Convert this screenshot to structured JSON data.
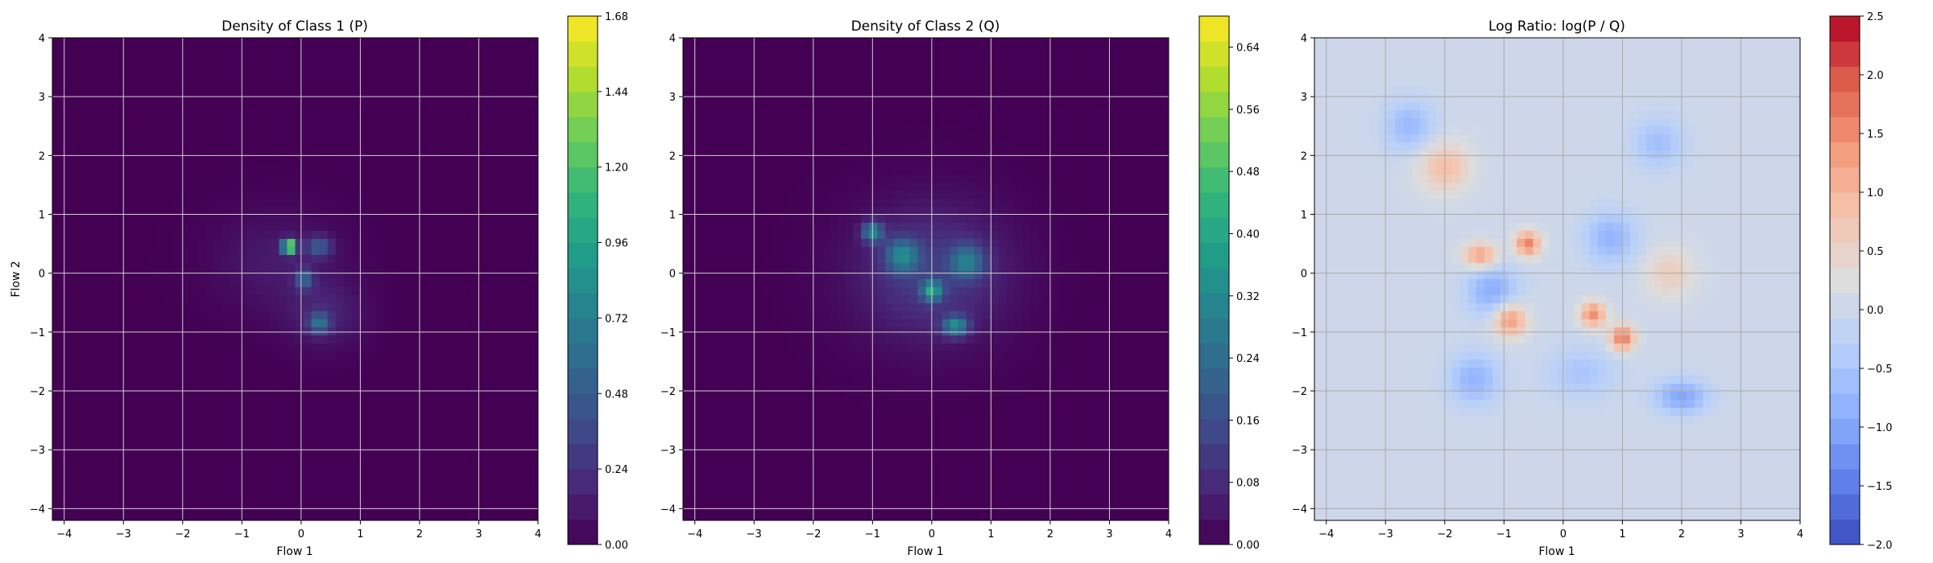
{
  "chart_data": [
    {
      "type": "heatmap",
      "title": "Density of Class 1 (P)",
      "xlabel": "Flow 1",
      "ylabel": "Flow 2",
      "xlim": [
        -4.2,
        4.0
      ],
      "ylim": [
        -4.2,
        4.0
      ],
      "xticks": [
        "−4",
        "−3",
        "−2",
        "−1",
        "0",
        "1",
        "2",
        "3",
        "4"
      ],
      "yticks": [
        "−4",
        "−3",
        "−2",
        "−1",
        "0",
        "1",
        "2",
        "3",
        "4"
      ],
      "grid": true,
      "colormap": "viridis",
      "colorbar": {
        "range": [
          0.0,
          1.68
        ],
        "ticks": [
          "0.00",
          "0.24",
          "0.48",
          "0.72",
          "0.96",
          "1.20",
          "1.44",
          "1.68"
        ]
      },
      "background_value": 0.0,
      "blobs": [
        {
          "x": -0.4,
          "y": 0.2,
          "sx": 0.75,
          "sy": 0.6,
          "value": 0.12
        },
        {
          "x": 0.4,
          "y": -0.7,
          "sx": 0.45,
          "sy": 0.4,
          "value": 0.16
        },
        {
          "x": -0.2,
          "y": 0.45,
          "sx": 0.08,
          "sy": 0.08,
          "value": 1.68
        },
        {
          "x": 0.3,
          "y": -0.85,
          "sx": 0.12,
          "sy": 0.12,
          "value": 0.55
        },
        {
          "x": 0.05,
          "y": -0.1,
          "sx": 0.1,
          "sy": 0.12,
          "value": 0.5
        },
        {
          "x": 0.3,
          "y": 0.45,
          "sx": 0.15,
          "sy": 0.12,
          "value": 0.45
        }
      ]
    },
    {
      "type": "heatmap",
      "title": "Density of Class 2 (Q)",
      "xlabel": "Flow 1",
      "ylabel": "",
      "xlim": [
        -4.2,
        4.0
      ],
      "ylim": [
        -4.2,
        4.0
      ],
      "xticks": [
        "−4",
        "−3",
        "−2",
        "−1",
        "0",
        "1",
        "2",
        "3",
        "4"
      ],
      "yticks": [
        "−4",
        "−3",
        "−2",
        "−1",
        "0",
        "1",
        "2",
        "3",
        "4"
      ],
      "grid": true,
      "colormap": "viridis",
      "colorbar": {
        "range": [
          0.0,
          0.68
        ],
        "ticks": [
          "0.00",
          "0.08",
          "0.16",
          "0.24",
          "0.32",
          "0.40",
          "0.48",
          "0.56",
          "0.64"
        ]
      },
      "background_value": 0.0,
      "blobs": [
        {
          "x": 0.0,
          "y": 0.0,
          "sx": 0.9,
          "sy": 0.8,
          "value": 0.12
        },
        {
          "x": -1.0,
          "y": 0.7,
          "sx": 0.12,
          "sy": 0.12,
          "value": 0.3
        },
        {
          "x": 0.0,
          "y": -0.3,
          "sx": 0.12,
          "sy": 0.12,
          "value": 0.32
        },
        {
          "x": 0.4,
          "y": -0.9,
          "sx": 0.15,
          "sy": 0.12,
          "value": 0.3
        },
        {
          "x": -0.5,
          "y": 0.3,
          "sx": 0.2,
          "sy": 0.2,
          "value": 0.25
        },
        {
          "x": 0.6,
          "y": 0.2,
          "sx": 0.2,
          "sy": 0.2,
          "value": 0.22
        }
      ]
    },
    {
      "type": "heatmap",
      "title": "Log Ratio: log(P / Q)",
      "xlabel": "Flow 1",
      "ylabel": "",
      "xlim": [
        -4.2,
        4.0
      ],
      "ylim": [
        -4.2,
        4.0
      ],
      "xticks": [
        "−4",
        "−3",
        "−2",
        "−1",
        "0",
        "1",
        "2",
        "3",
        "4"
      ],
      "yticks": [
        "−4",
        "−3",
        "−2",
        "−1",
        "0",
        "1",
        "2",
        "3",
        "4"
      ],
      "grid": true,
      "colormap": "coolwarm",
      "colorbar": {
        "range": [
          -2.0,
          2.5
        ],
        "ticks": [
          "−2.0",
          "−1.5",
          "−1.0",
          "−0.5",
          "0.0",
          "0.5",
          "1.0",
          "1.5",
          "2.0",
          "2.5"
        ]
      },
      "background_value": 0.0,
      "blobs": [
        {
          "x": -0.6,
          "y": 0.5,
          "sx": 0.15,
          "sy": 0.15,
          "value": 1.6
        },
        {
          "x": -0.9,
          "y": -0.8,
          "sx": 0.2,
          "sy": 0.2,
          "value": 1.4
        },
        {
          "x": 1.0,
          "y": -1.1,
          "sx": 0.15,
          "sy": 0.15,
          "value": 1.7
        },
        {
          "x": 0.5,
          "y": -0.7,
          "sx": 0.15,
          "sy": 0.15,
          "value": 1.5
        },
        {
          "x": -1.4,
          "y": 0.3,
          "sx": 0.2,
          "sy": 0.15,
          "value": 1.3
        },
        {
          "x": -2.0,
          "y": 1.8,
          "sx": 0.3,
          "sy": 0.3,
          "value": 0.9
        },
        {
          "x": -1.2,
          "y": -0.3,
          "sx": 0.3,
          "sy": 0.3,
          "value": -0.9
        },
        {
          "x": 0.8,
          "y": 0.6,
          "sx": 0.3,
          "sy": 0.3,
          "value": -0.8
        },
        {
          "x": -1.5,
          "y": -1.8,
          "sx": 0.3,
          "sy": 0.3,
          "value": -0.8
        },
        {
          "x": 2.0,
          "y": -2.1,
          "sx": 0.3,
          "sy": 0.2,
          "value": -1.0
        },
        {
          "x": -2.6,
          "y": 2.5,
          "sx": 0.3,
          "sy": 0.3,
          "value": -0.7
        },
        {
          "x": 1.6,
          "y": 2.2,
          "sx": 0.3,
          "sy": 0.3,
          "value": -0.6
        },
        {
          "x": 0.3,
          "y": -1.7,
          "sx": 0.4,
          "sy": 0.3,
          "value": -0.5
        },
        {
          "x": 1.8,
          "y": 0.0,
          "sx": 0.3,
          "sy": 0.3,
          "value": 0.6
        }
      ]
    }
  ]
}
